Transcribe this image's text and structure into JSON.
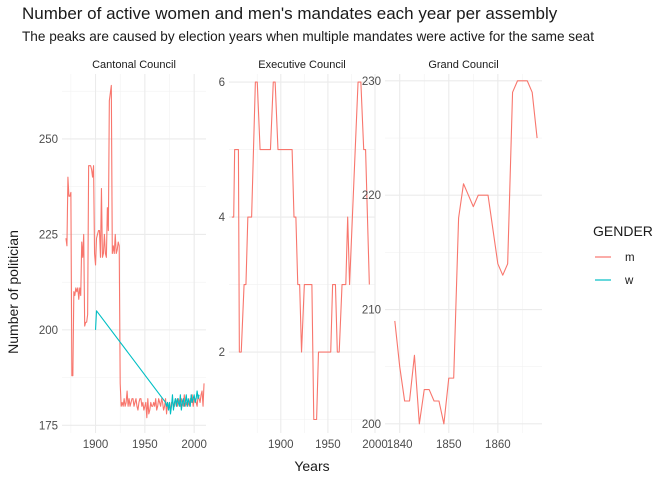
{
  "title": "Number of active women and men's mandates each year per assembly",
  "subtitle": "The peaks are caused by election years when multiple mandates were active for the same seat",
  "chart_data": {
    "type": "line",
    "xlabel": "Years",
    "ylabel": "Number of politician",
    "grid": true,
    "legend": {
      "title": "GENDER",
      "position": "right",
      "entries": [
        {
          "label": "m",
          "color": "#F8766D"
        },
        {
          "label": "w",
          "color": "#00BFC4"
        }
      ]
    },
    "panels": [
      {
        "name": "Cantonal Council",
        "xlim": [
          1866,
          2012
        ],
        "ylim": [
          173,
          267
        ],
        "xticks": [
          1900,
          1950,
          2000
        ],
        "yticks": [
          175,
          200,
          225,
          250
        ],
        "series": [
          {
            "name": "m",
            "color": "#F8766D",
            "x": [
              1870,
              1871,
              1872,
              1873,
              1874,
              1875,
              1876,
              1877,
              1878,
              1879,
              1880,
              1881,
              1882,
              1883,
              1884,
              1885,
              1886,
              1887,
              1888,
              1889,
              1890,
              1891,
              1892,
              1893,
              1894,
              1895,
              1896,
              1897,
              1898,
              1899,
              1900,
              1901,
              1902,
              1903,
              1904,
              1905,
              1906,
              1907,
              1908,
              1909,
              1910,
              1911,
              1912,
              1913,
              1914,
              1915,
              1916,
              1917,
              1918,
              1919,
              1920,
              1921,
              1922,
              1923,
              1924,
              1925,
              1926,
              1927,
              1928,
              1929,
              1930,
              1931,
              1932,
              1933,
              1934,
              1935,
              1936,
              1937,
              1938,
              1939,
              1940,
              1941,
              1942,
              1943,
              1944,
              1945,
              1946,
              1947,
              1948,
              1949,
              1950,
              1951,
              1952,
              1953,
              1954,
              1955,
              1956,
              1957,
              1958,
              1959,
              1960,
              1961,
              1962,
              1963,
              1964,
              1965,
              1966,
              1967,
              1968,
              1969,
              1970,
              1971,
              1972,
              1973,
              1974,
              1975,
              1976,
              1977,
              1978,
              1979,
              1980,
              1981,
              1982,
              1983,
              1984,
              1985,
              1986,
              1987,
              1988,
              1989,
              1990,
              1991,
              1992,
              1993,
              1994,
              1995,
              1996,
              1997,
              1998,
              1999,
              2000,
              2001,
              2002,
              2003,
              2004,
              2005,
              2006,
              2007,
              2008,
              2009,
              2010
            ],
            "y": [
              224,
              222,
              240,
              235,
              235,
              236,
              188,
              188,
              210,
              209,
              211,
              210,
              211,
              208,
              211,
              209,
              223,
              219,
              225,
              201,
              202,
              202,
              204,
              243,
              243,
              243,
              242,
              240,
              243,
              220,
              217,
              224,
              225,
              226,
              226,
              219,
              237,
              219,
              220,
              225,
              220,
              219,
              232,
              226,
              260,
              262,
              264,
              220,
              222,
              220,
              225,
              220,
              221,
              223,
              222,
              186,
              180,
              181,
              180,
              182,
              180,
              181,
              184,
              180,
              182,
              180,
              181,
              182,
              182,
              180,
              181,
              182,
              180,
              179,
              181,
              182,
              182,
              180,
              181,
              179,
              180,
              181,
              177,
              182,
              178,
              179,
              181,
              180,
              180,
              181,
              180,
              182,
              179,
              180,
              182,
              181,
              180,
              182,
              181,
              179,
              180,
              182,
              178,
              181,
              180,
              180,
              179,
              181,
              181,
              180,
              180,
              182,
              181,
              180,
              182,
              181,
              180,
              182,
              181,
              180,
              183,
              180,
              181,
              180,
              181,
              180,
              182,
              181,
              183,
              180,
              182,
              182,
              181,
              180,
              183,
              182,
              181,
              183,
              184,
              180,
              186
            ]
          },
          {
            "name": "w",
            "color": "#00BFC4",
            "x": [
              1900,
              1901,
              1971,
              1972,
              1973,
              1974,
              1975,
              1976,
              1977,
              1978,
              1979,
              1980,
              1981,
              1982,
              1983,
              1984,
              1985,
              1986,
              1987,
              1988,
              1989,
              1990,
              1991,
              1992,
              1993,
              1994,
              1995,
              1996,
              1997,
              1998,
              1999,
              2000,
              2001,
              2002,
              2003,
              2004,
              2005
            ],
            "y": [
              200,
              205,
              181,
              180,
              181,
              179,
              181,
              178,
              180,
              183,
              179,
              181,
              182,
              180,
              182,
              181,
              180,
              183,
              179,
              181,
              182,
              180,
              181,
              183,
              180,
              182,
              181,
              180,
              183,
              181,
              182,
              183,
              181,
              182,
              184,
              182,
              183
            ]
          }
        ]
      },
      {
        "name": "Executive Council",
        "xlim": [
          1845,
          2000
        ],
        "ylim": [
          0.8,
          6.12
        ],
        "xticks": [
          1900,
          1950,
          2000
        ],
        "yticks": [
          2,
          4,
          6
        ],
        "series": [
          {
            "name": "m",
            "color": "#F8766D",
            "x": [
              1848,
              1850,
              1851,
              1853,
              1855,
              1856,
              1858,
              1861,
              1863,
              1865,
              1867,
              1869,
              1871,
              1873,
              1875,
              1878,
              1881,
              1883,
              1886,
              1889,
              1892,
              1894,
              1897,
              1900,
              1902,
              1905,
              1908,
              1910,
              1912,
              1914,
              1916,
              1918,
              1920,
              1922,
              1925,
              1928,
              1931,
              1933,
              1935,
              1938,
              1940,
              1942,
              1944,
              1947,
              1950,
              1953,
              1955,
              1958,
              1960,
              1962,
              1965,
              1967,
              1969,
              1971,
              1973,
              1976,
              1979,
              1982,
              1985,
              1988,
              1990,
              1992,
              1994
            ],
            "y": [
              4,
              4,
              5,
              5,
              5,
              2,
              2,
              3,
              3,
              4,
              4,
              4,
              5,
              6,
              6,
              5,
              5,
              5,
              5,
              5,
              6,
              6,
              5,
              5,
              5,
              5,
              5,
              5,
              5,
              4,
              4,
              3,
              3,
              2,
              3,
              3,
              3,
              3,
              1,
              1,
              2,
              2,
              2,
              2,
              2,
              2,
              3,
              3,
              2,
              2,
              3,
              3,
              3,
              4,
              3,
              4,
              5,
              6,
              6,
              5,
              5,
              4,
              3
            ]
          }
        ]
      },
      {
        "name": "Grand Council",
        "xlim": [
          1837,
          1869
        ],
        "ylim": [
          199.2,
          230.6
        ],
        "xticks": [
          1840,
          1850,
          1860
        ],
        "yticks": [
          200,
          210,
          220,
          230
        ],
        "series": [
          {
            "name": "m",
            "color": "#F8766D",
            "x": [
              1839,
              1840,
              1841,
              1842,
              1843,
              1844,
              1845,
              1846,
              1847,
              1848,
              1849,
              1850,
              1851,
              1852,
              1853,
              1854,
              1855,
              1856,
              1857,
              1858,
              1859,
              1860,
              1861,
              1862,
              1863,
              1864,
              1865,
              1866,
              1867,
              1868
            ],
            "y": [
              209,
              205,
              202,
              202,
              206,
              200,
              203,
              203,
              202,
              202,
              200,
              204,
              204,
              218,
              221,
              220,
              219,
              220,
              220,
              220,
              217,
              214,
              213,
              214,
              229,
              230,
              230,
              230,
              229,
              225
            ]
          }
        ]
      }
    ]
  }
}
